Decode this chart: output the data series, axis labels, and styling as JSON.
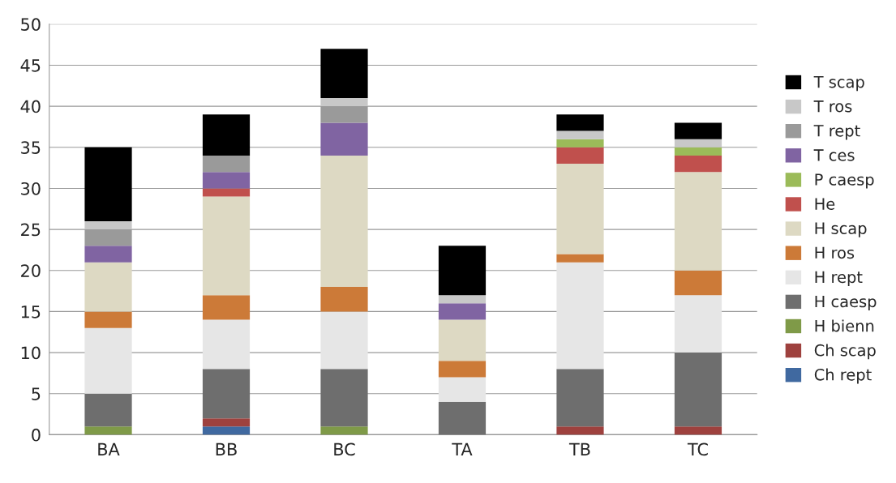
{
  "chart_data": {
    "type": "bar",
    "stacked": true,
    "categories": [
      "BA",
      "BB",
      "BC",
      "TA",
      "TB",
      "TC"
    ],
    "ylim": [
      0,
      50
    ],
    "yticks": [
      0,
      5,
      10,
      15,
      20,
      25,
      30,
      35,
      40,
      45,
      50
    ],
    "grid": "y",
    "legend": "right",
    "series": [
      {
        "name": "Ch rept",
        "color": "#4069a0",
        "values": [
          0,
          1,
          0,
          0,
          0,
          0
        ]
      },
      {
        "name": "Ch scap",
        "color": "#9e413e",
        "values": [
          0,
          1,
          0,
          0,
          1,
          1
        ]
      },
      {
        "name": "H bienn",
        "color": "#7f9a48",
        "values": [
          1,
          0,
          1,
          0,
          0,
          0
        ]
      },
      {
        "name": "H caesp",
        "color": "#6e6e6e",
        "values": [
          4,
          6,
          7,
          4,
          7,
          9
        ]
      },
      {
        "name": "H rept",
        "color": "#e6e6e6",
        "values": [
          8,
          6,
          7,
          3,
          13,
          7
        ]
      },
      {
        "name": "H ros",
        "color": "#cc7a38",
        "values": [
          2,
          3,
          3,
          2,
          1,
          3
        ]
      },
      {
        "name": "H scap",
        "color": "#ddd9c3",
        "values": [
          6,
          12,
          16,
          5,
          11,
          12
        ]
      },
      {
        "name": "He",
        "color": "#c0504d",
        "values": [
          0,
          1,
          0,
          0,
          2,
          2
        ]
      },
      {
        "name": "P caesp",
        "color": "#9bbb59",
        "values": [
          0,
          0,
          0,
          0,
          1,
          1
        ]
      },
      {
        "name": "T ces",
        "color": "#8064a2",
        "values": [
          2,
          2,
          4,
          2,
          0,
          0
        ]
      },
      {
        "name": "T rept",
        "color": "#9a9a9a",
        "values": [
          2,
          2,
          2,
          0,
          0,
          0
        ]
      },
      {
        "name": "T ros",
        "color": "#c8c8c8",
        "values": [
          1,
          0,
          1,
          1,
          1,
          1
        ]
      },
      {
        "name": "T scap",
        "color": "#000000",
        "values": [
          9,
          5,
          6,
          6,
          2,
          2
        ]
      }
    ]
  }
}
